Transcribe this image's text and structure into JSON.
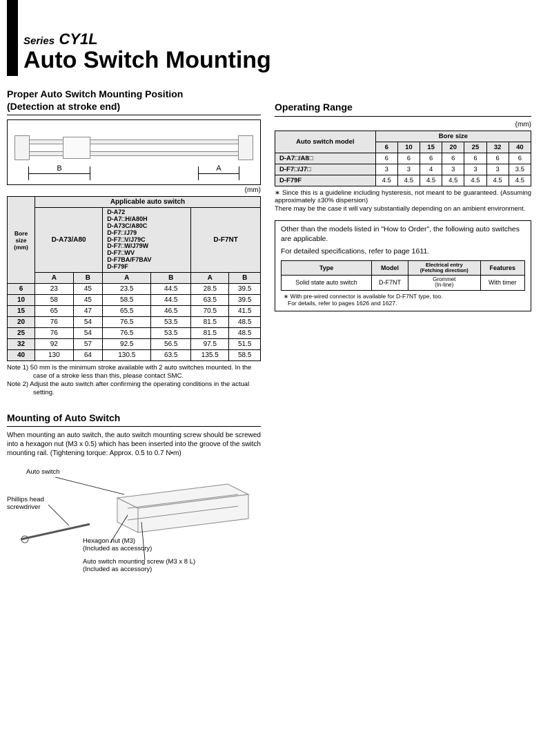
{
  "header": {
    "series_label": "Series",
    "series_name": "CY1L",
    "main_title": "Auto Switch Mounting"
  },
  "left": {
    "section1_title_line1": "Proper Auto Switch Mounting Position",
    "section1_title_line2": "(Detection at stroke end)",
    "mm": "(mm)",
    "dim_B": "B",
    "dim_A": "A",
    "table1": {
      "applicable_header": "Applicable auto switch",
      "bore_header": "Bore size\n(mm)",
      "col1_label": "D-A73/A80",
      "col2_label": "D-A72\nD-A7□H/A80H\nD-A73C/A80C\nD-F7□/J79\nD-F7□V/J79C\nD-F7□W/J79W\nD-F7□WV\nD-F7BA/F7BAV\nD-F79F",
      "col3_label": "D-F7NT",
      "A": "A",
      "B": "B",
      "rows": [
        {
          "bore": "6",
          "a1": "23",
          "b1": "45",
          "a2": "23.5",
          "b2": "44.5",
          "a3": "28.5",
          "b3": "39.5"
        },
        {
          "bore": "10",
          "a1": "58",
          "b1": "45",
          "a2": "58.5",
          "b2": "44.5",
          "a3": "63.5",
          "b3": "39.5"
        },
        {
          "bore": "15",
          "a1": "65",
          "b1": "47",
          "a2": "65.5",
          "b2": "46.5",
          "a3": "70.5",
          "b3": "41.5"
        },
        {
          "bore": "20",
          "a1": "76",
          "b1": "54",
          "a2": "76.5",
          "b2": "53.5",
          "a3": "81.5",
          "b3": "48.5"
        },
        {
          "bore": "25",
          "a1": "76",
          "b1": "54",
          "a2": "76.5",
          "b2": "53.5",
          "a3": "81.5",
          "b3": "48.5"
        },
        {
          "bore": "32",
          "a1": "92",
          "b1": "57",
          "a2": "92.5",
          "b2": "56.5",
          "a3": "97.5",
          "b3": "51.5"
        },
        {
          "bore": "40",
          "a1": "130",
          "b1": "64",
          "a2": "130.5",
          "b2": "63.5",
          "a3": "135.5",
          "b3": "58.5"
        }
      ]
    },
    "note1": "Note 1) 50 mm is the minimum stroke available with 2 auto switches mounted. In the case of a stroke less than this, please contact SMC.",
    "note2": "Note 2) Adjust the auto switch after confirming the operating conditions in the actual setting.",
    "section2_title": "Mounting of Auto Switch",
    "mounting_para": "When mounting an auto switch, the auto switch mounting screw should be screwed into a hexagon nut (M3 x 0.5) which has been inserted into the groove of the switch mounting rail. (Tightening torque: Approx. 0.5 to 0.7 N•m)",
    "labels": {
      "auto_switch": "Auto switch",
      "screwdriver": "Phillips head\nscrewdriver",
      "hexnut": "Hexagon nut (M3)\n(Included as accessory)",
      "screw": "Auto switch mounting screw (M3 x 8 L)\n(Included as accessory)"
    }
  },
  "right": {
    "section_title": "Operating Range",
    "mm": "(mm)",
    "table2": {
      "asm": "Auto switch model",
      "bore_header": "Bore size",
      "bores": [
        "6",
        "10",
        "15",
        "20",
        "25",
        "32",
        "40"
      ],
      "rows": [
        {
          "model": "D-A7□/A8□",
          "vals": [
            "6",
            "6",
            "6",
            "6",
            "6",
            "6",
            "6"
          ]
        },
        {
          "model": "D-F7□/J7□",
          "vals": [
            "3",
            "3",
            "4",
            "3",
            "3",
            "3",
            "3.5"
          ]
        },
        {
          "model": "D-F79F",
          "vals": [
            "4.5",
            "4.5",
            "4.5",
            "4.5",
            "4.5",
            "4.5",
            "4.5"
          ]
        }
      ]
    },
    "op_note_star": "∗",
    "op_note": "Since this is a guideline including hysteresis, not meant to be guaranteed. (Assuming approximately ±30% dispersion)\nThere may be the case it will vary substantially depending on an ambient environment.",
    "combo": {
      "intro": "Other than the models listed in \"How to Order\", the following auto switches are applicable.",
      "detail": "For detailed specifications, refer to page 1611.",
      "headers": {
        "type": "Type",
        "model": "Model",
        "entry": "Electrical entry\n(Fetching direction)",
        "features": "Features"
      },
      "row": {
        "type": "Solid state auto switch",
        "model": "D-F7NT",
        "entry": "Grommet\n(In-line)",
        "features": "With timer"
      },
      "sub": "∗ With pre-wired connector is available for D-F7NT type, too.\n   For details, refer to pages 1626 and 1627."
    }
  }
}
